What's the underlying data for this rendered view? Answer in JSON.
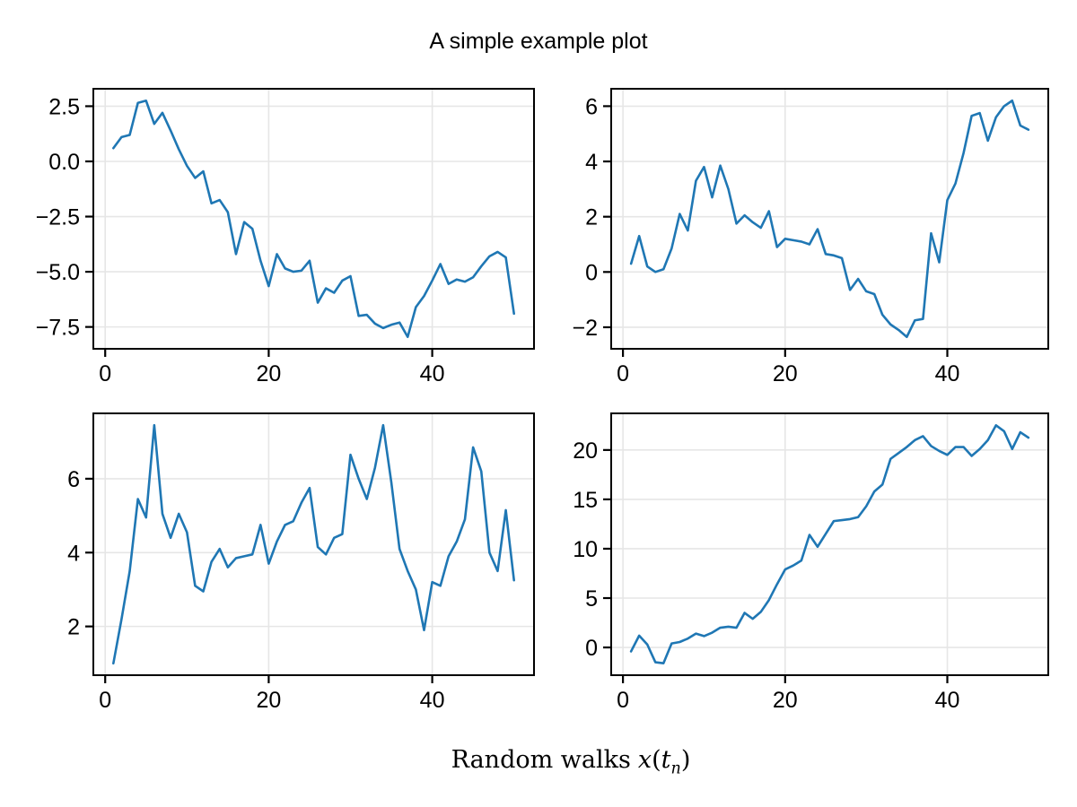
{
  "figure": {
    "suptitle": "A simple example plot",
    "supxlabel": {
      "prefix": "Random walks",
      "var": "x",
      "open": "(",
      "arg": "t",
      "sub": "n",
      "close": ")"
    },
    "background_color": "#ffffff",
    "line_color": "#1f77b4",
    "grid_color": "#e6e6e6",
    "spine_color": "#000000",
    "tick_label_color": "#000000"
  },
  "chart_data": [
    {
      "type": "line",
      "id": "random-walk-1",
      "grid": true,
      "legend": null,
      "x_start": 1,
      "x_step": 1,
      "values": [
        0.6,
        1.1,
        1.2,
        2.65,
        2.75,
        1.7,
        2.2,
        1.4,
        0.55,
        -0.2,
        -0.75,
        -0.45,
        -1.9,
        -1.75,
        -2.3,
        -4.2,
        -2.75,
        -3.05,
        -4.5,
        -5.65,
        -4.2,
        -4.85,
        -5.0,
        -4.95,
        -4.5,
        -6.4,
        -5.75,
        -5.95,
        -5.4,
        -5.2,
        -7.0,
        -6.95,
        -7.35,
        -7.55,
        -7.4,
        -7.3,
        -7.95,
        -6.6,
        -6.1,
        -5.4,
        -4.65,
        -5.55,
        -5.35,
        -5.45,
        -5.25,
        -4.75,
        -4.3,
        -4.1,
        -4.35,
        -6.9
      ],
      "xlim": [
        -1.45,
        52.45
      ],
      "ylim": [
        -8.49,
        3.29
      ],
      "xticks": {
        "values": [
          0,
          20,
          40
        ],
        "labels": [
          "0",
          "20",
          "40"
        ]
      },
      "yticks": {
        "values": [
          2.5,
          0.0,
          -2.5,
          -5.0,
          -7.5
        ],
        "labels": [
          "2.5",
          "0.0",
          "−2.5",
          "−5.0",
          "−7.5"
        ]
      }
    },
    {
      "type": "line",
      "id": "random-walk-2",
      "grid": true,
      "legend": null,
      "x_start": 1,
      "x_step": 1,
      "values": [
        0.3,
        1.3,
        0.2,
        0.0,
        0.1,
        0.85,
        2.1,
        1.5,
        3.3,
        3.8,
        2.7,
        3.85,
        3.0,
        1.75,
        2.05,
        1.8,
        1.6,
        2.2,
        0.9,
        1.2,
        1.15,
        1.1,
        1.0,
        1.55,
        0.65,
        0.6,
        0.5,
        -0.65,
        -0.25,
        -0.7,
        -0.8,
        -1.55,
        -1.9,
        -2.1,
        -2.35,
        -1.75,
        -1.7,
        1.4,
        0.35,
        2.6,
        3.2,
        4.3,
        5.65,
        5.75,
        4.75,
        5.6,
        6.0,
        6.2,
        5.3,
        5.15
      ],
      "xlim": [
        -1.45,
        52.45
      ],
      "ylim": [
        -2.78,
        6.63
      ],
      "xticks": {
        "values": [
          0,
          20,
          40
        ],
        "labels": [
          "0",
          "20",
          "40"
        ]
      },
      "yticks": {
        "values": [
          6,
          4,
          2,
          0,
          -2
        ],
        "labels": [
          "6",
          "4",
          "2",
          "0",
          "−2"
        ]
      }
    },
    {
      "type": "line",
      "id": "random-walk-3",
      "grid": true,
      "legend": null,
      "x_start": 1,
      "x_step": 1,
      "values": [
        1.0,
        2.2,
        3.5,
        5.45,
        4.95,
        7.45,
        5.05,
        4.4,
        5.05,
        4.55,
        3.1,
        2.95,
        3.75,
        4.1,
        3.6,
        3.85,
        3.9,
        3.95,
        4.75,
        3.7,
        4.3,
        4.75,
        4.85,
        5.35,
        5.75,
        4.15,
        3.95,
        4.4,
        4.5,
        6.65,
        6.0,
        5.45,
        6.3,
        7.45,
        5.9,
        4.1,
        3.5,
        3.0,
        1.9,
        3.2,
        3.1,
        3.9,
        4.3,
        4.9,
        6.85,
        6.2,
        4.0,
        3.5,
        5.15,
        3.25
      ],
      "xlim": [
        -1.45,
        52.45
      ],
      "ylim": [
        0.68,
        7.77
      ],
      "xticks": {
        "values": [
          0,
          20,
          40
        ],
        "labels": [
          "0",
          "20",
          "40"
        ]
      },
      "yticks": {
        "values": [
          6,
          4,
          2
        ],
        "labels": [
          "6",
          "4",
          "2"
        ]
      }
    },
    {
      "type": "line",
      "id": "random-walk-4",
      "grid": true,
      "legend": null,
      "x_start": 1,
      "x_step": 1,
      "values": [
        -0.4,
        1.2,
        0.3,
        -1.5,
        -1.6,
        0.4,
        0.55,
        0.9,
        1.4,
        1.15,
        1.5,
        2.0,
        2.1,
        2.0,
        3.5,
        2.9,
        3.6,
        4.8,
        6.4,
        7.9,
        8.3,
        8.8,
        11.4,
        10.2,
        11.5,
        12.8,
        12.9,
        13.0,
        13.2,
        14.3,
        15.8,
        16.5,
        19.1,
        19.7,
        20.3,
        21.0,
        21.4,
        20.4,
        19.9,
        19.5,
        20.3,
        20.3,
        19.4,
        20.1,
        21.0,
        22.5,
        21.9,
        20.1,
        21.8,
        21.25
      ],
      "xlim": [
        -1.45,
        52.45
      ],
      "ylim": [
        -2.81,
        23.71
      ],
      "xticks": {
        "values": [
          0,
          20,
          40
        ],
        "labels": [
          "0",
          "20",
          "40"
        ]
      },
      "yticks": {
        "values": [
          20,
          15,
          10,
          5,
          0
        ],
        "labels": [
          "20",
          "15",
          "10",
          "5",
          "0"
        ]
      }
    }
  ]
}
